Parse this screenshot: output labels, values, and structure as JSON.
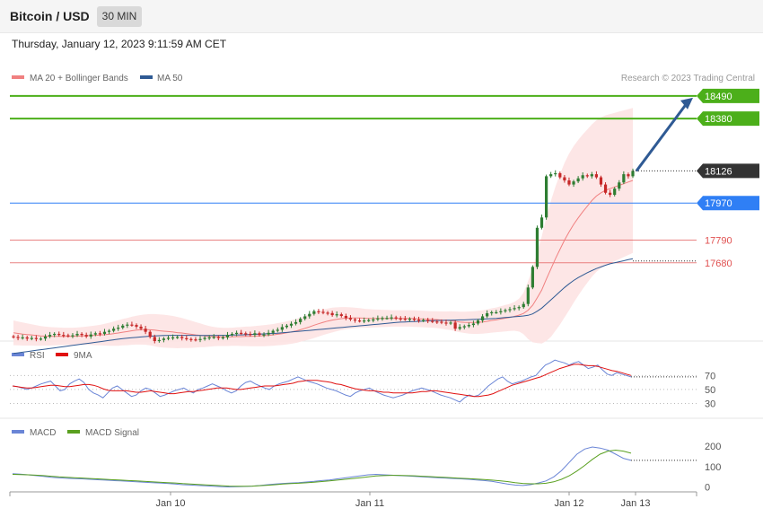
{
  "header": {
    "title": "Bitcoin / USD",
    "timeframe": "30 MIN"
  },
  "date": "Thursday, January 12, 2023 9:11:59 AM CET",
  "colors": {
    "ma20": "#f08080",
    "ma50": "#2f5a94",
    "up": "#2e7d32",
    "down": "#c62828",
    "green_level": "#4caf1a",
    "blue_level": "#2f7ff5",
    "red_level": "#e05050",
    "rsi": "#6a85d6",
    "rsi_ma": "#e01010",
    "macd": "#6a85d6",
    "macd_signal": "#5aa020"
  },
  "chart_data": [
    {
      "type": "candlestick",
      "name": "price",
      "legend": [
        "MA 20 + Bollinger Bands",
        "MA 50"
      ],
      "copyright": "Research © 2023 Trading Central",
      "ylim": [
        17300,
        18520
      ],
      "x_ticks": [
        "Jan 10",
        "Jan 11",
        "Jan 12",
        "Jan 13"
      ],
      "current_price": "18126",
      "levels": [
        {
          "value": 18490,
          "label": "18490",
          "kind": "resistance"
        },
        {
          "value": 18380,
          "label": "18380",
          "kind": "resistance"
        },
        {
          "value": 17970,
          "label": "17970",
          "kind": "pivot"
        },
        {
          "value": 17790,
          "label": "17790",
          "kind": "support"
        },
        {
          "value": 17680,
          "label": "17680",
          "kind": "support"
        }
      ],
      "closes": [
        17320,
        17315,
        17318,
        17312,
        17315,
        17310,
        17312,
        17322,
        17330,
        17335,
        17330,
        17328,
        17325,
        17328,
        17335,
        17330,
        17322,
        17332,
        17338,
        17335,
        17345,
        17350,
        17360,
        17365,
        17375,
        17380,
        17378,
        17370,
        17360,
        17345,
        17320,
        17300,
        17305,
        17312,
        17316,
        17318,
        17320,
        17314,
        17310,
        17308,
        17306,
        17310,
        17316,
        17318,
        17320,
        17315,
        17318,
        17330,
        17335,
        17340,
        17338,
        17335,
        17330,
        17338,
        17330,
        17332,
        17340,
        17350,
        17355,
        17368,
        17375,
        17384,
        17392,
        17408,
        17420,
        17432,
        17445,
        17442,
        17438,
        17436,
        17426,
        17430,
        17422,
        17412,
        17405,
        17400,
        17398,
        17400,
        17402,
        17405,
        17410,
        17412,
        17412,
        17415,
        17410,
        17408,
        17406,
        17408,
        17404,
        17400,
        17402,
        17398,
        17395,
        17394,
        17390,
        17386,
        17390,
        17360,
        17368,
        17372,
        17378,
        17385,
        17400,
        17420,
        17435,
        17440,
        17440,
        17445,
        17450,
        17455,
        17460,
        17465,
        17480,
        17560,
        17660,
        17850,
        17900,
        18100,
        18110,
        18115,
        18095,
        18080,
        18060,
        18075,
        18090,
        18105,
        18100,
        18110,
        18095,
        18060,
        18020,
        18010,
        18040,
        18070,
        18110,
        18100,
        18126
      ],
      "ma20": [
        17340,
        17337,
        17334,
        17332,
        17330,
        17327,
        17325,
        17324,
        17323,
        17323,
        17323,
        17323,
        17323,
        17323,
        17324,
        17325,
        17326,
        17327,
        17328,
        17329,
        17331,
        17333,
        17336,
        17339,
        17343,
        17346,
        17350,
        17353,
        17355,
        17356,
        17355,
        17353,
        17350,
        17348,
        17346,
        17344,
        17341,
        17339,
        17336,
        17333,
        17330,
        17328,
        17325,
        17323,
        17322,
        17321,
        17320,
        17320,
        17321,
        17322,
        17322,
        17323,
        17323,
        17324,
        17325,
        17326,
        17328,
        17330,
        17333,
        17336,
        17340,
        17344,
        17349,
        17355,
        17362,
        17369,
        17377,
        17384,
        17391,
        17397,
        17402,
        17406,
        17409,
        17411,
        17412,
        17412,
        17412,
        17411,
        17410,
        17410,
        17410,
        17410,
        17410,
        17410,
        17410,
        17410,
        17410,
        17410,
        17409,
        17408,
        17407,
        17406,
        17405,
        17404,
        17402,
        17400,
        17399,
        17396,
        17393,
        17391,
        17390,
        17390,
        17391,
        17393,
        17396,
        17400,
        17403,
        17407,
        17411,
        17415,
        17420,
        17426,
        17434,
        17450,
        17474,
        17510,
        17548,
        17600,
        17650,
        17700,
        17745,
        17790,
        17830,
        17866,
        17898,
        17928,
        17955,
        17982,
        18004,
        18020,
        18032,
        18040,
        18048,
        18056,
        18064,
        18072,
        18080
      ],
      "bb_width": [
        60,
        58,
        56,
        54,
        52,
        50,
        48,
        46,
        45,
        44,
        43,
        42,
        42,
        42,
        42,
        43,
        44,
        46,
        48,
        50,
        53,
        56,
        59,
        62,
        64,
        66,
        68,
        70,
        72,
        74,
        76,
        78,
        80,
        80,
        79,
        78,
        76,
        73,
        70,
        66,
        62,
        58,
        54,
        50,
        47,
        45,
        44,
        44,
        44,
        45,
        46,
        47,
        48,
        49,
        50,
        51,
        52,
        53,
        54,
        55,
        56,
        57,
        58,
        59,
        60,
        61,
        62,
        62,
        62,
        61,
        60,
        58,
        56,
        54,
        52,
        50,
        48,
        46,
        45,
        44,
        43,
        42,
        41,
        40,
        40,
        40,
        40,
        40,
        40,
        40,
        40,
        40,
        40,
        41,
        42,
        44,
        46,
        48,
        50,
        52,
        54,
        55,
        56,
        57,
        58,
        59,
        60,
        62,
        64,
        66,
        70,
        80,
        100,
        140,
        180,
        220,
        260,
        300,
        330,
        350,
        365,
        375,
        380,
        380,
        378,
        375,
        372,
        370,
        368,
        366,
        364,
        362,
        360,
        358,
        356,
        354,
        352
      ],
      "ma50": [
        17240,
        17243,
        17246,
        17249,
        17252,
        17255,
        17258,
        17261,
        17264,
        17267,
        17270,
        17273,
        17276,
        17279,
        17282,
        17285,
        17288,
        17291,
        17294,
        17297,
        17300,
        17303,
        17306,
        17309,
        17312,
        17314,
        17316,
        17318,
        17320,
        17322,
        17324,
        17325,
        17326,
        17327,
        17327,
        17328,
        17328,
        17328,
        17328,
        17328,
        17327,
        17327,
        17327,
        17327,
        17327,
        17328,
        17328,
        17328,
        17329,
        17330,
        17330,
        17331,
        17332,
        17333,
        17334,
        17335,
        17336,
        17337,
        17338,
        17340,
        17342,
        17344,
        17346,
        17348,
        17350,
        17352,
        17354,
        17356,
        17358,
        17360,
        17362,
        17364,
        17366,
        17368,
        17370,
        17372,
        17374,
        17376,
        17378,
        17380,
        17382,
        17384,
        17386,
        17388,
        17390,
        17392,
        17393,
        17394,
        17395,
        17396,
        17397,
        17398,
        17399,
        17400,
        17400,
        17401,
        17401,
        17402,
        17403,
        17403,
        17404,
        17405,
        17406,
        17407,
        17408,
        17409,
        17410,
        17412,
        17414,
        17416,
        17418,
        17420,
        17422,
        17425,
        17432,
        17445,
        17460,
        17480,
        17500,
        17520,
        17540,
        17560,
        17578,
        17594,
        17608,
        17620,
        17632,
        17642,
        17652,
        17660,
        17668,
        17675,
        17680,
        17685,
        17690,
        17695,
        17700
      ]
    },
    {
      "type": "line",
      "name": "RSI",
      "series_names": [
        "RSI",
        "9MA"
      ],
      "y_ticks": [
        "70",
        "50",
        "30"
      ],
      "ylim": [
        10,
        100
      ],
      "rsi": [
        55,
        54,
        52,
        50,
        52,
        55,
        58,
        60,
        62,
        55,
        48,
        50,
        58,
        62,
        65,
        60,
        50,
        45,
        42,
        38,
        45,
        52,
        55,
        50,
        45,
        40,
        42,
        48,
        52,
        50,
        45,
        40,
        42,
        45,
        48,
        50,
        52,
        48,
        45,
        50,
        52,
        55,
        58,
        55,
        52,
        48,
        45,
        48,
        55,
        60,
        62,
        58,
        55,
        52,
        50,
        55,
        58,
        60,
        62,
        65,
        68,
        65,
        62,
        60,
        58,
        55,
        52,
        50,
        48,
        45,
        42,
        40,
        45,
        48,
        50,
        52,
        48,
        45,
        42,
        40,
        38,
        40,
        42,
        45,
        48,
        50,
        52,
        50,
        48,
        45,
        42,
        40,
        38,
        35,
        32,
        38,
        42,
        40,
        42,
        48,
        55,
        60,
        65,
        68,
        62,
        58,
        60,
        62,
        65,
        68,
        70,
        78,
        85,
        88,
        92,
        90,
        88,
        85,
        88,
        90,
        85,
        80,
        82,
        85,
        78,
        72,
        70,
        74,
        72,
        70,
        68
      ],
      "rsi_ma": [
        55,
        54,
        53,
        52,
        52,
        53,
        54,
        55,
        56,
        56,
        55,
        54,
        54,
        55,
        56,
        57,
        57,
        56,
        54,
        51,
        49,
        48,
        48,
        48,
        48,
        47,
        46,
        46,
        47,
        48,
        47,
        46,
        45,
        44,
        44,
        45,
        46,
        47,
        47,
        48,
        49,
        50,
        51,
        52,
        52,
        52,
        51,
        50,
        50,
        51,
        52,
        53,
        54,
        55,
        55,
        55,
        56,
        57,
        58,
        59,
        61,
        62,
        63,
        63,
        63,
        62,
        61,
        60,
        58,
        57,
        55,
        53,
        51,
        50,
        49,
        48,
        48,
        47,
        46,
        46,
        45,
        45,
        45,
        45,
        45,
        46,
        47,
        47,
        48,
        48,
        47,
        46,
        45,
        44,
        43,
        42,
        41,
        40,
        40,
        41,
        42,
        44,
        47,
        50,
        53,
        56,
        58,
        60,
        62,
        64,
        66,
        68,
        71,
        74,
        77,
        80,
        82,
        84,
        86,
        86,
        85,
        84,
        84,
        83,
        81,
        79,
        77,
        76,
        74,
        72,
        70
      ]
    },
    {
      "type": "line",
      "name": "MACD",
      "series_names": [
        "MACD",
        "MACD Signal"
      ],
      "y_ticks": [
        "200",
        "100",
        "0"
      ],
      "ylim": [
        -10,
        230
      ],
      "macd": [
        65,
        63,
        60,
        56,
        52,
        48,
        45,
        43,
        41,
        40,
        38,
        36,
        34,
        32,
        30,
        28,
        26,
        24,
        22,
        20,
        18,
        15,
        12,
        10,
        8,
        6,
        4,
        2,
        1,
        2,
        3,
        5,
        8,
        12,
        15,
        18,
        20,
        22,
        25,
        28,
        32,
        35,
        40,
        45,
        50,
        55,
        60,
        62,
        60,
        58,
        56,
        54,
        52,
        50,
        48,
        46,
        44,
        42,
        40,
        38,
        35,
        32,
        28,
        22,
        15,
        10,
        8,
        12,
        20,
        30,
        50,
        80,
        120,
        160,
        185,
        195,
        190,
        180,
        160,
        140,
        130
      ],
      "signal": [
        62,
        61,
        60,
        58,
        56,
        53,
        50,
        48,
        46,
        44,
        42,
        40,
        38,
        36,
        34,
        32,
        30,
        28,
        26,
        24,
        22,
        20,
        17,
        15,
        13,
        11,
        9,
        7,
        5,
        4,
        4,
        5,
        7,
        9,
        12,
        15,
        17,
        19,
        21,
        24,
        27,
        30,
        34,
        38,
        42,
        46,
        50,
        54,
        56,
        57,
        57,
        56,
        55,
        53,
        51,
        49,
        47,
        45,
        43,
        41,
        39,
        37,
        34,
        31,
        27,
        22,
        18,
        16,
        16,
        19,
        26,
        38,
        55,
        78,
        105,
        135,
        160,
        175,
        180,
        175,
        165
      ]
    }
  ]
}
